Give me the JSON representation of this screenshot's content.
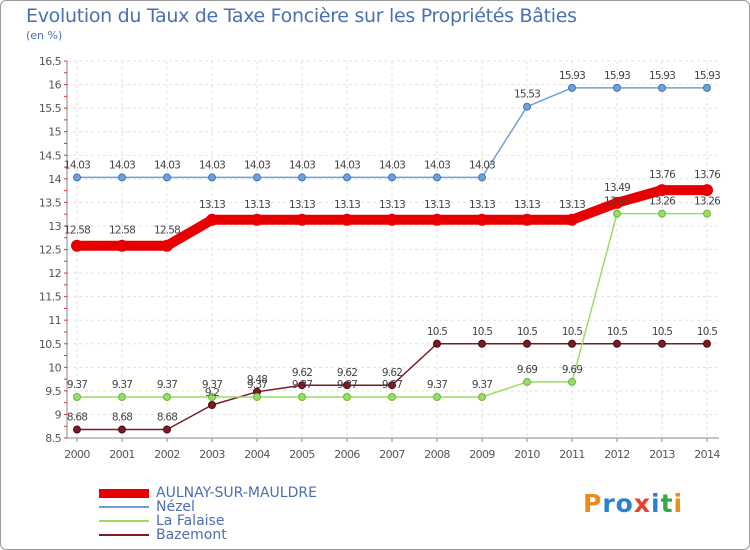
{
  "chart_data": {
    "type": "line",
    "title": "Evolution du Taux de Taxe Foncière sur les Propriétés Bâties",
    "subtitle": "(en %)",
    "x": [
      "2000",
      "2001",
      "2002",
      "2003",
      "2004",
      "2005",
      "2006",
      "2007",
      "2008",
      "2009",
      "2010",
      "2011",
      "2012",
      "2013",
      "2014"
    ],
    "ylim": [
      8.5,
      16.5
    ],
    "yticks": [
      "8.5",
      "9",
      "9.5",
      "10",
      "10.5",
      "11",
      "11.5",
      "12",
      "12.5",
      "13",
      "13.5",
      "14",
      "14.5",
      "15",
      "15.5",
      "16",
      "16.5"
    ],
    "grid": true,
    "series": [
      {
        "name": "AULNAY-SUR-MAULDRE",
        "color": "#e80000",
        "values": [
          12.58,
          12.58,
          12.58,
          13.13,
          13.13,
          13.13,
          13.13,
          13.13,
          13.13,
          13.13,
          13.13,
          13.13,
          13.49,
          13.76,
          13.76
        ],
        "labels": [
          "12.58",
          "12.58",
          "12.58",
          "13.13",
          "13.13",
          "13.13",
          "13.13",
          "13.13",
          "13.13",
          "13.13",
          "13.13",
          "13.13",
          "13.49",
          "13.76",
          "13.76"
        ]
      },
      {
        "name": "Nézel",
        "color": "#6fa0d6",
        "values": [
          14.03,
          14.03,
          14.03,
          14.03,
          14.03,
          14.03,
          14.03,
          14.03,
          14.03,
          14.03,
          15.53,
          15.93,
          15.93,
          15.93,
          15.93
        ],
        "labels": [
          "14.03",
          "14.03",
          "14.03",
          "14.03",
          "14.03",
          "14.03",
          "14.03",
          "14.03",
          "14.03",
          "14.03",
          "15.53",
          "15.93",
          "15.93",
          "15.93",
          "15.93"
        ]
      },
      {
        "name": "La Falaise",
        "color": "#99dd66",
        "values": [
          9.37,
          9.37,
          9.37,
          9.37,
          9.37,
          9.37,
          9.37,
          9.37,
          9.37,
          9.37,
          9.69,
          9.69,
          13.26,
          13.26,
          13.26
        ],
        "labels": [
          "9.37",
          "9.37",
          "9.37",
          "9.37",
          "9.37",
          "9.37",
          "9.37",
          "9.37",
          "9.37",
          "9.37",
          "9.69",
          "9.69",
          "13.26",
          "13.26",
          "13.26"
        ]
      },
      {
        "name": "Bazemont",
        "color": "#7a1a24",
        "values": [
          8.68,
          8.68,
          8.68,
          9.2,
          9.48,
          9.62,
          9.62,
          9.62,
          10.5,
          10.5,
          10.5,
          10.5,
          10.5,
          10.5,
          10.5
        ],
        "labels": [
          "8.68",
          "8.68",
          "8.68",
          "9.2",
          "9.48",
          "9.62",
          "9.62",
          "9.62",
          "10.5",
          "10.5",
          "10.5",
          "10.5",
          "10.5",
          "10.5",
          "10.5"
        ]
      }
    ]
  },
  "logo": {
    "text": "Proxiti",
    "letters": [
      {
        "ch": "P",
        "color": "#f08a1c"
      },
      {
        "ch": "r",
        "color": "#2e7fd0"
      },
      {
        "ch": "o",
        "color": "#2e7fd0"
      },
      {
        "ch": "x",
        "color": "#e6402e"
      },
      {
        "ch": "i",
        "color": "#2e7fd0"
      },
      {
        "ch": "t",
        "color": "#3aa84a"
      },
      {
        "ch": "i",
        "color": "#f08a1c"
      }
    ]
  }
}
